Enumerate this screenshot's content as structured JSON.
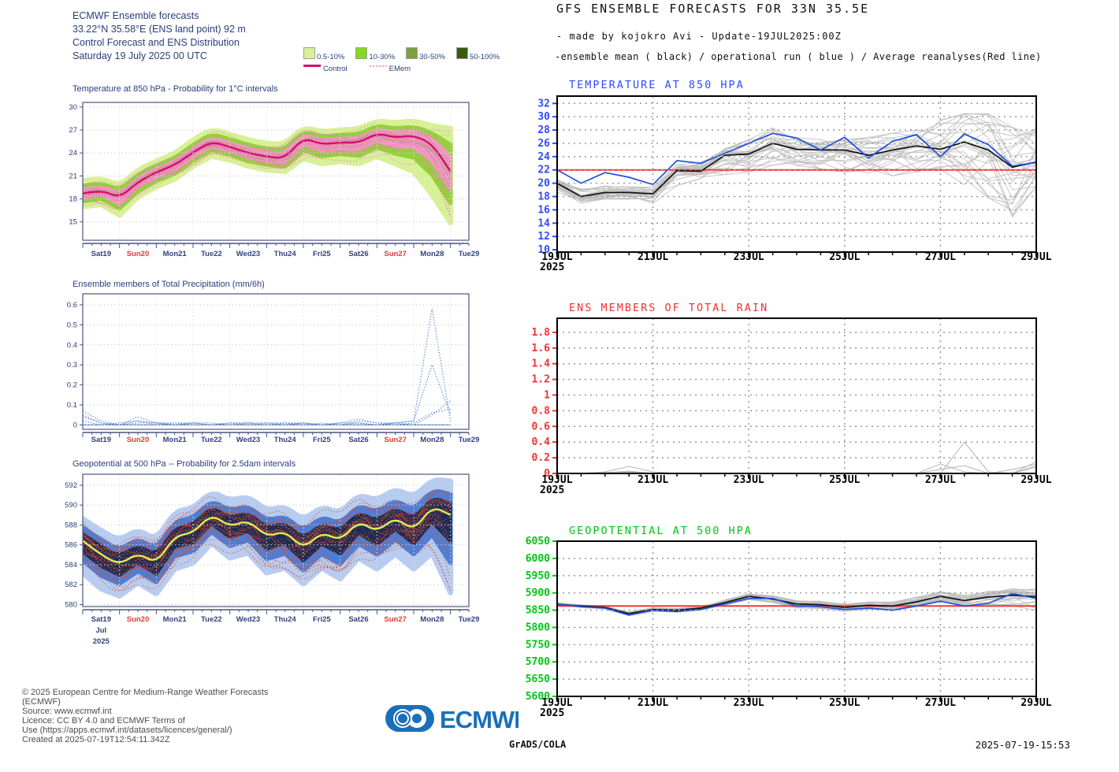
{
  "left_panel": {
    "header_lines": [
      "ECMWF Ensemble forecasts",
      "33.22°N 35.58°E (ENS land point) 92 m",
      "Control Forecast and ENS Distribution",
      "Saturday 19 July 2025 00 UTC"
    ],
    "legend": {
      "bands": [
        {
          "label": "0.5-10%",
          "color": "#d8f098"
        },
        {
          "label": "10-30%",
          "color": "#86d821"
        },
        {
          "label": "30-50%",
          "color": "#7f9e3f"
        },
        {
          "label": "50-100%",
          "color": "#3a5a0e"
        }
      ],
      "control_label": "Control",
      "emem_label": "EMem",
      "control_color": "#d60f70",
      "emem_color": "#f2a0c6"
    },
    "footer_lines": [
      "© 2025 European Centre for Medium-Range Weather Forecasts",
      "(ECMWF)",
      "Source: www.ecmwf.int",
      "Licence: CC BY 4.0 and ECMWF Terms of",
      "Use (https://apps.ecmwf.int/datasets/licences/general/)",
      "Created at 2025-07-19T12:54:11.342Z"
    ],
    "logo_text": "ECMWF",
    "logo_color": "#1a70b8",
    "text_color": "#2a3f7c",
    "sunday_color": "#e13a3a"
  },
  "right_panel": {
    "title": "GFS ENSEMBLE FORECASTS FOR 33N 35.5E",
    "subtitle1": "- made by kojokro Avi - Update-19JUL2025:00Z",
    "subtitle2": "-ensemble mean ( black) / operational run ( blue )  / Average reanalyses(Red line)",
    "credit": "GrADS/COLA",
    "datetime": "2025-07-19-15:53"
  },
  "chart_data": [
    {
      "id": "ecmwf_t850",
      "type": "band",
      "style": "ecmwf",
      "title": "Temperature at 850 hPa - Probability for 1°C intervals",
      "x_days": [
        "Sat19",
        "Sun20",
        "Mon21",
        "Tue22",
        "Wed23",
        "Thu24",
        "Fri25",
        "Sat26",
        "Sun27",
        "Mon28",
        "Tue29"
      ],
      "sunday_indices": [
        1,
        8
      ],
      "yticks": [
        15,
        18,
        21,
        24,
        27,
        30
      ],
      "ylim": [
        12.6,
        30.6
      ],
      "x_step_days": 0.5,
      "control": [
        18.7,
        19.2,
        18.1,
        20.2,
        21.5,
        22.4,
        24.1,
        25.5,
        24.8,
        24.0,
        23.5,
        23.3,
        26.0,
        25.1,
        25.4,
        25.3,
        26.6,
        26.0,
        26.3,
        25.2,
        21.6
      ],
      "env_high": [
        20.3,
        20.8,
        19.6,
        21.8,
        22.9,
        23.9,
        25.7,
        27.1,
        26.4,
        25.7,
        25.2,
        25.1,
        27.4,
        26.7,
        27.0,
        27.1,
        28.2,
        27.9,
        28.2,
        27.5,
        27.2
      ],
      "env_low": [
        17.0,
        17.3,
        15.9,
        18.3,
        19.6,
        20.6,
        22.3,
        23.6,
        23.1,
        22.3,
        21.8,
        21.6,
        23.3,
        22.6,
        22.9,
        22.6,
        23.6,
        22.6,
        21.6,
        18.6,
        14.9
      ],
      "member_count": 24,
      "colors": {
        "outer": "#d8f098",
        "mid": "#8fd437",
        "inner": "#ef9cc2",
        "control": "#d60f70",
        "members": "#f07fb4",
        "speckle": "#6f8f36"
      }
    },
    {
      "id": "ecmwf_precip",
      "type": "members",
      "style": "ecmwf",
      "title": "Ensemble members of Total Precipitation (mm/6h)",
      "x_days": [
        "Sat19",
        "Sun20",
        "Mon21",
        "Tue22",
        "Wed23",
        "Thu24",
        "Fri25",
        "Sat26",
        "Sun27",
        "Mon28",
        "Tue29"
      ],
      "sunday_indices": [
        1,
        8
      ],
      "yticks": [
        0,
        0.1,
        0.2,
        0.3,
        0.4,
        0.5,
        0.6
      ],
      "ylim": [
        -0.022,
        0.655
      ],
      "x_step_days": 0.5,
      "members": [
        [
          0.07,
          0.02,
          0,
          0.01,
          0.01,
          0,
          0.01,
          0,
          0.01,
          0,
          0.01,
          0.01,
          0.01,
          0,
          0,
          0.01,
          0,
          0.01,
          0,
          0.05,
          0.12
        ],
        [
          0.04,
          0.01,
          0,
          0.04,
          0.01,
          0.01,
          0,
          0,
          0.01,
          0.01,
          0,
          0,
          0.01,
          0,
          0.01,
          0.03,
          0.01,
          0.01,
          0.02,
          0.58,
          0.02
        ],
        [
          0.02,
          0,
          0.01,
          0.02,
          0,
          0.01,
          0.01,
          0,
          0.01,
          0.01,
          0,
          0.01,
          0,
          0.01,
          0,
          0.02,
          0.01,
          0,
          0.01,
          0.06,
          0.08
        ],
        [
          0.05,
          0.01,
          0,
          0.02,
          0.01,
          0,
          0.01,
          0.01,
          0,
          0.01,
          0.01,
          0,
          0.01,
          0,
          0.01,
          0.01,
          0,
          0.01,
          0.02,
          0.3,
          0.05
        ]
      ],
      "colors": {
        "members": "#4a7bd0"
      }
    },
    {
      "id": "ecmwf_z500",
      "type": "band",
      "style": "ecmwf",
      "title": "Geopotential at 500 hPa -- Probability for 2.5dam intervals",
      "x_days": [
        "Sat19",
        "Sun20",
        "Mon21",
        "Tue22",
        "Wed23",
        "Thu24",
        "Fri25",
        "Sat26",
        "Sun27",
        "Mon28",
        "Tue29"
      ],
      "sunday_indices": [
        1,
        8
      ],
      "x_extra_labels": [
        "Jul",
        "2025"
      ],
      "yticks": [
        580,
        582,
        584,
        586,
        588,
        590,
        592
      ],
      "ylim": [
        579.8,
        593.1
      ],
      "x_step_days": 0.5,
      "control": [
        586.4,
        585.0,
        584.0,
        585.2,
        584.1,
        586.9,
        587.2,
        589.1,
        587.8,
        588.5,
        586.8,
        587.4,
        585.6,
        587.3,
        586.4,
        588.4,
        587.3,
        588.8,
        587.4,
        589.9,
        589.0
      ],
      "env_high": [
        588.6,
        587.4,
        586.4,
        587.6,
        586.4,
        589.4,
        589.6,
        591.4,
        590.4,
        590.9,
        589.4,
        589.9,
        588.4,
        589.9,
        589.1,
        591.1,
        590.4,
        591.7,
        590.7,
        592.6,
        592.4
      ],
      "env_low": [
        583.2,
        581.6,
        580.9,
        582.2,
        581.1,
        583.6,
        584.2,
        586.2,
        584.7,
        585.2,
        583.2,
        583.7,
        582.1,
        583.7,
        582.6,
        584.7,
        583.6,
        585.1,
        583.6,
        585.2,
        581.2
      ],
      "member_count": 30,
      "colors": {
        "outer": "#b8ccf0",
        "mid": "#4d7fd6",
        "inner": "#1b2c55",
        "control": "#e0ec52",
        "members": "#dd4a2e"
      }
    },
    {
      "id": "gfs_t850",
      "type": "spaghetti",
      "style": "grads",
      "title": "TEMPERATURE AT 850 HPA",
      "title_color": "#2f4bff",
      "axis_color": "#2f4bff",
      "xticks": [
        "19JUL",
        "21JUL",
        "23JUL",
        "25JUL",
        "27JUL",
        "29JUL"
      ],
      "x_year": "2025",
      "yticks": [
        10,
        12,
        14,
        16,
        18,
        20,
        22,
        24,
        26,
        28,
        30,
        32
      ],
      "ylim": [
        9.65,
        33.1
      ],
      "x_step_days": 0.5,
      "mean": [
        20.0,
        18.0,
        18.6,
        18.6,
        18.4,
        21.9,
        21.8,
        24.2,
        24.4,
        26.0,
        25.1,
        25.0,
        25.0,
        24.2,
        25.0,
        25.6,
        25.1,
        26.2,
        25.0,
        22.4,
        23.2
      ],
      "operational": [
        22.0,
        20.0,
        21.6,
        20.9,
        19.8,
        23.4,
        23.0,
        24.5,
        26.0,
        27.5,
        26.8,
        25.0,
        26.9,
        23.8,
        26.3,
        27.3,
        24.0,
        27.4,
        25.8,
        22.6,
        23.1
      ],
      "env_high": [
        20.6,
        19.2,
        19.6,
        19.5,
        19.4,
        22.8,
        23.2,
        25.2,
        26.6,
        28.4,
        27.2,
        26.6,
        26.6,
        27.0,
        27.6,
        28.2,
        29.6,
        30.6,
        30.6,
        28.6,
        28.4
      ],
      "env_low": [
        18.6,
        17.0,
        17.6,
        17.6,
        16.8,
        19.6,
        20.6,
        21.2,
        21.6,
        22.6,
        22.6,
        22.0,
        21.6,
        21.4,
        21.0,
        21.6,
        22.0,
        19.6,
        17.6,
        14.6,
        19.4
      ],
      "reanalysis": 22,
      "member_count": 28,
      "colors": {
        "mean": "#111111",
        "operational": "#1f4fdd",
        "reanalysis": "#f63333",
        "members": "#bdbdbd"
      }
    },
    {
      "id": "gfs_rain",
      "type": "members",
      "style": "grads",
      "title": "ENS MEMBERS OF TOTAL RAIN",
      "title_color": "#ee3333",
      "axis_color": "#ee3333",
      "xticks": [
        "19JUL",
        "21JUL",
        "23JUL",
        "25JUL",
        "27JUL",
        "29JUL"
      ],
      "x_year": "2025",
      "yticks": [
        0,
        0.2,
        0.4,
        0.6,
        0.8,
        1,
        1.2,
        1.4,
        1.6,
        1.8
      ],
      "ylim": [
        0,
        1.98
      ],
      "x_step_days": 0.5,
      "members": [
        [
          0,
          0,
          0.02,
          0.09,
          0.02,
          0,
          0,
          0,
          0,
          0,
          0,
          0,
          0,
          0,
          0,
          0,
          0,
          0,
          0,
          0,
          0.1
        ],
        [
          0,
          0,
          0,
          0.01,
          0,
          0,
          0,
          0,
          0,
          0,
          0,
          0,
          0,
          0,
          0,
          0,
          0.12,
          0.02,
          0,
          0,
          0.15
        ],
        [
          0,
          0,
          0,
          0.02,
          0,
          0,
          0,
          0,
          0,
          0,
          0,
          0,
          0,
          0,
          0,
          0,
          0,
          0.4,
          0.02,
          0,
          0.08
        ],
        [
          0,
          0,
          0.01,
          0.03,
          0,
          0,
          0,
          0,
          0,
          0,
          0,
          0,
          0,
          0,
          0,
          0,
          0.05,
          0.1,
          0,
          0.05,
          0.12
        ]
      ],
      "colors": {
        "members": "#b5b5b5"
      }
    },
    {
      "id": "gfs_z500",
      "type": "spaghetti",
      "style": "grads",
      "title": "GEOPOTENTIAL AT 500 HPA",
      "title_color": "#00c614",
      "axis_color": "#00c614",
      "xticks": [
        "19JUL",
        "21JUL",
        "23JUL",
        "25JUL",
        "27JUL",
        "29JUL"
      ],
      "x_year": "2025",
      "yticks": [
        5600,
        5650,
        5700,
        5750,
        5800,
        5850,
        5900,
        5950,
        6000,
        6050
      ],
      "ylim": [
        5600,
        6050
      ],
      "x_step_days": 0.5,
      "mean": [
        5867,
        5862,
        5858,
        5840,
        5852,
        5850,
        5856,
        5872,
        5890,
        5882,
        5868,
        5866,
        5858,
        5864,
        5862,
        5874,
        5890,
        5878,
        5888,
        5893,
        5889
      ],
      "operational": [
        5868,
        5860,
        5856,
        5836,
        5850,
        5846,
        5852,
        5868,
        5884,
        5884,
        5862,
        5860,
        5852,
        5856,
        5850,
        5862,
        5876,
        5862,
        5870,
        5898,
        5884
      ],
      "env_high": [
        5872,
        5866,
        5862,
        5846,
        5857,
        5855,
        5862,
        5880,
        5898,
        5892,
        5878,
        5876,
        5868,
        5874,
        5874,
        5888,
        5904,
        5894,
        5906,
        5914,
        5912
      ],
      "env_low": [
        5862,
        5857,
        5853,
        5834,
        5846,
        5844,
        5850,
        5864,
        5880,
        5872,
        5856,
        5854,
        5846,
        5852,
        5848,
        5860,
        5874,
        5860,
        5866,
        5862,
        5848
      ],
      "reanalysis": 5862,
      "member_count": 28,
      "colors": {
        "mean": "#111111",
        "operational": "#1f4fdd",
        "reanalysis": "#f63333",
        "members": "#bdbdbd"
      }
    }
  ]
}
